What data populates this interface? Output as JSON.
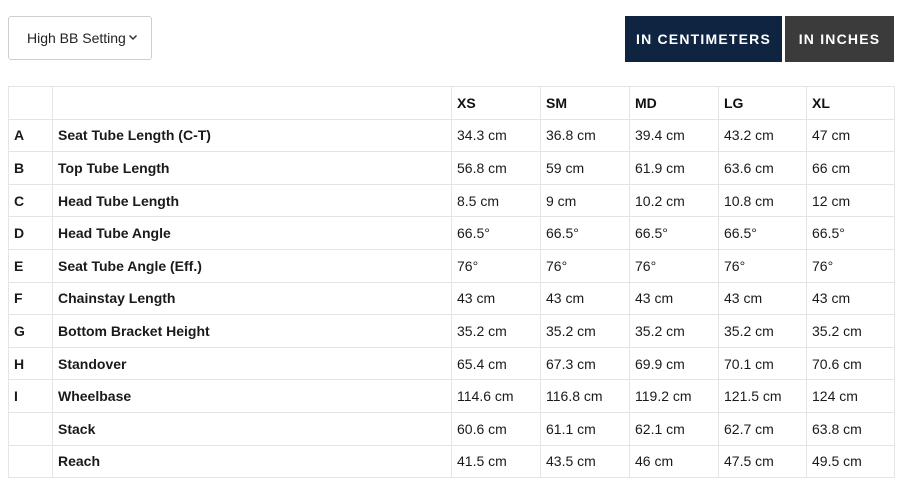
{
  "controls": {
    "setting_select": "High BB Setting",
    "btn_cm": "IN CENTIMETERS",
    "btn_in": "IN INCHES"
  },
  "colors": {
    "cm_button": "#0e2441",
    "in_button": "#3b3b3b"
  },
  "table": {
    "headers": [
      "",
      "",
      "XS",
      "SM",
      "MD",
      "LG",
      "XL"
    ],
    "rows": [
      {
        "letter": "A",
        "label": "Seat Tube Length (C-T)",
        "values": [
          "34.3 cm",
          "36.8 cm",
          "39.4 cm",
          "43.2 cm",
          "47 cm"
        ]
      },
      {
        "letter": "B",
        "label": "Top Tube Length",
        "values": [
          "56.8 cm",
          "59 cm",
          "61.9 cm",
          "63.6 cm",
          "66 cm"
        ]
      },
      {
        "letter": "C",
        "label": "Head Tube Length",
        "values": [
          "8.5 cm",
          "9 cm",
          "10.2 cm",
          "10.8 cm",
          "12 cm"
        ]
      },
      {
        "letter": "D",
        "label": "Head Tube Angle",
        "values": [
          "66.5°",
          "66.5°",
          "66.5°",
          "66.5°",
          "66.5°"
        ]
      },
      {
        "letter": "E",
        "label": "Seat Tube Angle (Eff.)",
        "values": [
          "76°",
          "76°",
          "76°",
          "76°",
          "76°"
        ]
      },
      {
        "letter": "F",
        "label": "Chainstay Length",
        "values": [
          "43 cm",
          "43 cm",
          "43 cm",
          "43 cm",
          "43 cm"
        ]
      },
      {
        "letter": "G",
        "label": "Bottom Bracket Height",
        "values": [
          "35.2 cm",
          "35.2 cm",
          "35.2 cm",
          "35.2 cm",
          "35.2 cm"
        ]
      },
      {
        "letter": "H",
        "label": "Standover",
        "values": [
          "65.4 cm",
          "67.3 cm",
          "69.9 cm",
          "70.1 cm",
          "70.6 cm"
        ]
      },
      {
        "letter": "I",
        "label": "Wheelbase",
        "values": [
          "114.6 cm",
          "116.8 cm",
          "119.2 cm",
          "121.5 cm",
          "124 cm"
        ]
      },
      {
        "letter": "",
        "label": "Stack",
        "values": [
          "60.6 cm",
          "61.1 cm",
          "62.1 cm",
          "62.7 cm",
          "63.8 cm"
        ]
      },
      {
        "letter": "",
        "label": "Reach",
        "values": [
          "41.5 cm",
          "43.5 cm",
          "46 cm",
          "47.5 cm",
          "49.5 cm"
        ]
      }
    ]
  }
}
